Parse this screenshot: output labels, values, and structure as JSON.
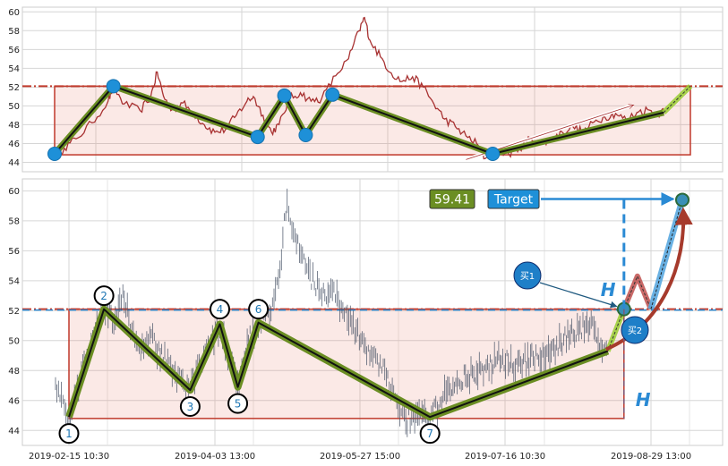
{
  "chart_data": [
    {
      "type": "line",
      "panel": "overview",
      "ylim": [
        43,
        60.5
      ],
      "yticks": [
        44,
        46,
        48,
        50,
        52,
        54,
        56,
        58,
        60
      ],
      "grid": true,
      "series": [
        {
          "style": "price-line",
          "color": "#a83232",
          "points": [
            [
              0,
              44.8
            ],
            [
              0.9,
              45.5
            ],
            [
              2,
              46.5
            ],
            [
              3.5,
              48.2
            ],
            [
              5,
              50.5
            ],
            [
              5.5,
              52
            ],
            [
              6.5,
              50.2
            ],
            [
              8,
              49.5
            ],
            [
              9,
              51
            ],
            [
              9.6,
              53.6
            ],
            [
              10.2,
              51
            ],
            [
              11,
              49.6
            ],
            [
              12,
              50.3
            ],
            [
              13,
              49.2
            ],
            [
              14,
              48
            ],
            [
              15,
              47.2
            ],
            [
              16,
              47.5
            ],
            [
              17,
              49
            ],
            [
              18,
              50.5
            ],
            [
              18.6,
              51
            ],
            [
              19.5,
              49
            ],
            [
              20.3,
              47.2
            ],
            [
              21,
              48
            ],
            [
              22,
              50.8
            ],
            [
              23,
              51.4
            ],
            [
              24,
              50.5
            ],
            [
              25,
              50.8
            ],
            [
              26.3,
              53.2
            ],
            [
              27.5,
              55
            ],
            [
              28.5,
              58
            ],
            [
              29,
              59.4
            ],
            [
              29.5,
              57
            ],
            [
              30.5,
              55.2
            ],
            [
              31.5,
              53.5
            ],
            [
              32.5,
              52.6
            ],
            [
              33.5,
              53.1
            ],
            [
              34.5,
              52
            ],
            [
              35.5,
              50.2
            ],
            [
              36.5,
              48.6
            ],
            [
              37.5,
              47.8
            ],
            [
              38.5,
              46.8
            ],
            [
              39.5,
              46
            ],
            [
              40.3,
              44.4
            ],
            [
              41.5,
              45.2
            ],
            [
              42.5,
              44.9
            ],
            [
              43.5,
              45.5
            ],
            [
              44.5,
              46.6
            ],
            [
              45.5,
              46
            ],
            [
              46.5,
              46.4
            ],
            [
              47.5,
              47.2
            ],
            [
              48.5,
              47.8
            ],
            [
              49.5,
              47.2
            ],
            [
              50.5,
              48.3
            ],
            [
              51.5,
              48.8
            ],
            [
              52.5,
              49.2
            ],
            [
              53.5,
              48.5
            ],
            [
              54.5,
              49.3
            ],
            [
              55.5,
              49.6
            ],
            [
              56.5,
              49.2
            ],
            [
              57,
              49.5
            ]
          ]
        },
        {
          "style": "zigzag",
          "color": "#6b8e23",
          "points": [
            [
              0,
              44.9
            ],
            [
              5.5,
              52.1
            ],
            [
              19,
              46.7
            ],
            [
              21.5,
              51.1
            ],
            [
              23.5,
              46.9
            ],
            [
              26,
              51.2
            ],
            [
              41,
              44.9
            ],
            [
              57,
              49.3
            ],
            [
              59.5,
              52.1
            ]
          ]
        }
      ],
      "pivot_markers": [
        [
          0,
          44.9
        ],
        [
          5.5,
          52.1
        ],
        [
          19,
          46.7
        ],
        [
          21.5,
          51.1
        ],
        [
          23.5,
          46.9
        ],
        [
          26,
          51.2
        ],
        [
          41,
          44.9
        ]
      ],
      "box": {
        "x": [
          0,
          59.5
        ],
        "y": [
          44.8,
          52.1
        ]
      },
      "resistance_line": 52.1,
      "trend_arrow": {
        "from": [
          38.5,
          44.3
        ],
        "to": [
          54.2,
          50.1
        ]
      }
    },
    {
      "type": "line",
      "panel": "pattern",
      "ylim": [
        43,
        60.8
      ],
      "yticks": [
        44,
        46,
        48,
        50,
        52,
        54,
        56,
        58,
        60
      ],
      "xtick_labels": [
        "2019-02-15 10:30",
        "2019-04-03 13:00",
        "2019-05-27 15:00",
        "2019-07-16 10:30",
        "2019-08-29 13:00"
      ],
      "grid": true,
      "series": [
        {
          "style": "zigzag",
          "color": "#6b8e23",
          "points": [
            [
              0,
              44.9
            ],
            [
              3.9,
              52.1
            ],
            [
              13.5,
              46.7
            ],
            [
              16.8,
              51.1
            ],
            [
              18.8,
              46.9
            ],
            [
              21.1,
              51.2
            ],
            [
              40.2,
              44.9
            ],
            [
              60,
              49.3
            ],
            [
              61.8,
              52.1
            ],
            [
              63.3,
              54.3
            ],
            [
              64.8,
              52.1
            ],
            [
              68.3,
              59.4
            ]
          ]
        }
      ],
      "pivot_labels": [
        {
          "label": "1",
          "x": 0,
          "y": 43.8
        },
        {
          "label": "2",
          "x": 3.9,
          "y": 53.0
        },
        {
          "label": "3",
          "x": 13.5,
          "y": 45.6
        },
        {
          "label": "4",
          "x": 16.8,
          "y": 52.1
        },
        {
          "label": "5",
          "x": 18.8,
          "y": 45.8
        },
        {
          "label": "6",
          "x": 21.1,
          "y": 52.1
        },
        {
          "label": "7",
          "x": 40.2,
          "y": 43.8
        }
      ],
      "box": {
        "x": [
          0,
          61.8
        ],
        "y": [
          44.8,
          52.1
        ]
      },
      "resistance_line": 52.1,
      "target_value": "59.41",
      "target_label": "Target",
      "buy_labels": [
        "买1",
        "买2"
      ],
      "height_label": "H"
    }
  ]
}
